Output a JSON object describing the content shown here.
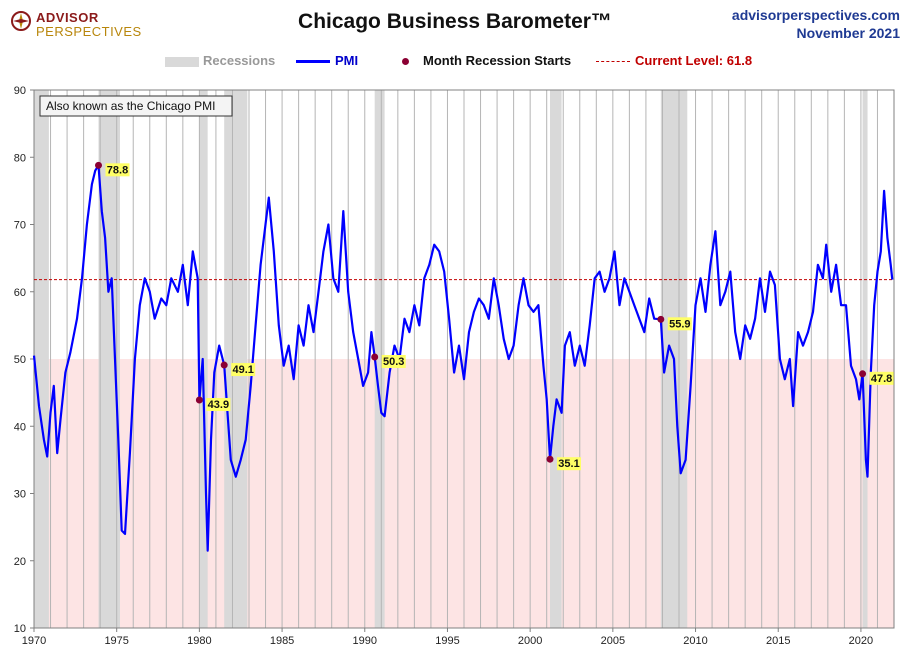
{
  "header": {
    "logo_line1": "ADVISOR",
    "logo_line2": "PERSPECTIVES",
    "title": "Chicago Business Barometer™",
    "site": "advisorperspectives.com",
    "date": "November 2021"
  },
  "legend": {
    "recessions": "Recessions",
    "pmi": "PMI",
    "recession_start": "Month Recession Starts",
    "current": "Current Level: 61.8"
  },
  "colors": {
    "pmi_line": "#0000ff",
    "recession_band": "#d9d9d9",
    "contraction_fill": "#fde4e4",
    "current_line": "#c00000",
    "marker": "#8b0033",
    "label_bg": "#ffff66"
  },
  "chart_data": {
    "type": "line",
    "title": "Chicago Business Barometer™",
    "annotation_box": "Also known as the Chicago PMI",
    "xlim": [
      1970,
      2022
    ],
    "ylim": [
      10,
      90
    ],
    "yticks": [
      10,
      20,
      30,
      40,
      50,
      60,
      70,
      80,
      90
    ],
    "xticks": [
      1970,
      1975,
      1980,
      1985,
      1990,
      1995,
      2000,
      2005,
      2010,
      2015,
      2020
    ],
    "grid": "vertical yearly lines",
    "contraction_threshold": 50,
    "current_level": 61.8,
    "recessions": [
      [
        1970.0,
        1970.9
      ],
      [
        1973.9,
        1975.2
      ],
      [
        1980.0,
        1980.5
      ],
      [
        1981.5,
        1982.9
      ],
      [
        1990.6,
        1991.2
      ],
      [
        2001.2,
        2001.9
      ],
      [
        2007.9,
        2009.5
      ],
      [
        2020.1,
        2020.4
      ]
    ],
    "recession_starts": [
      {
        "x": 1973.9,
        "y": 78.8,
        "label": "78.8"
      },
      {
        "x": 1980.0,
        "y": 43.9,
        "label": "43.9"
      },
      {
        "x": 1981.5,
        "y": 49.1,
        "label": "49.1"
      },
      {
        "x": 1990.6,
        "y": 50.3,
        "label": "50.3"
      },
      {
        "x": 2001.2,
        "y": 35.1,
        "label": "35.1"
      },
      {
        "x": 2007.9,
        "y": 55.9,
        "label": "55.9"
      },
      {
        "x": 2020.1,
        "y": 47.8,
        "label": "47.8"
      }
    ],
    "series": [
      {
        "name": "PMI",
        "points": [
          [
            1970.0,
            50.5
          ],
          [
            1970.3,
            43
          ],
          [
            1970.6,
            38
          ],
          [
            1970.8,
            35.5
          ],
          [
            1971.0,
            42
          ],
          [
            1971.2,
            46
          ],
          [
            1971.4,
            36
          ],
          [
            1971.6,
            41
          ],
          [
            1971.9,
            48
          ],
          [
            1972.2,
            51
          ],
          [
            1972.6,
            56
          ],
          [
            1972.9,
            62
          ],
          [
            1973.2,
            70
          ],
          [
            1973.5,
            76
          ],
          [
            1973.7,
            78
          ],
          [
            1973.9,
            78.8
          ],
          [
            1974.1,
            72
          ],
          [
            1974.3,
            68
          ],
          [
            1974.5,
            60
          ],
          [
            1974.7,
            62
          ],
          [
            1974.9,
            50
          ],
          [
            1975.1,
            38
          ],
          [
            1975.3,
            24.5
          ],
          [
            1975.5,
            24
          ],
          [
            1975.8,
            36
          ],
          [
            1976.1,
            50
          ],
          [
            1976.4,
            58
          ],
          [
            1976.7,
            62
          ],
          [
            1977.0,
            60
          ],
          [
            1977.3,
            56
          ],
          [
            1977.7,
            59
          ],
          [
            1978.0,
            58
          ],
          [
            1978.3,
            62
          ],
          [
            1978.7,
            60
          ],
          [
            1979.0,
            64
          ],
          [
            1979.3,
            58
          ],
          [
            1979.6,
            66
          ],
          [
            1979.9,
            62
          ],
          [
            1980.0,
            43.9
          ],
          [
            1980.2,
            50
          ],
          [
            1980.4,
            30
          ],
          [
            1980.5,
            21.5
          ],
          [
            1980.7,
            38
          ],
          [
            1980.9,
            48
          ],
          [
            1981.2,
            52
          ],
          [
            1981.5,
            49.1
          ],
          [
            1981.7,
            42
          ],
          [
            1981.9,
            35
          ],
          [
            1982.2,
            32.5
          ],
          [
            1982.5,
            35
          ],
          [
            1982.8,
            38
          ],
          [
            1983.1,
            46
          ],
          [
            1983.4,
            55
          ],
          [
            1983.7,
            64
          ],
          [
            1984.0,
            70
          ],
          [
            1984.2,
            74
          ],
          [
            1984.5,
            66
          ],
          [
            1984.8,
            55
          ],
          [
            1985.1,
            49
          ],
          [
            1985.4,
            52
          ],
          [
            1985.7,
            47
          ],
          [
            1986.0,
            55
          ],
          [
            1986.3,
            52
          ],
          [
            1986.6,
            58
          ],
          [
            1986.9,
            54
          ],
          [
            1987.2,
            60
          ],
          [
            1987.5,
            66
          ],
          [
            1987.8,
            70
          ],
          [
            1988.1,
            62
          ],
          [
            1988.4,
            60
          ],
          [
            1988.7,
            72
          ],
          [
            1989.0,
            60
          ],
          [
            1989.3,
            54
          ],
          [
            1989.6,
            50
          ],
          [
            1989.9,
            46
          ],
          [
            1990.2,
            48
          ],
          [
            1990.4,
            54
          ],
          [
            1990.6,
            50.3
          ],
          [
            1990.8,
            46
          ],
          [
            1991.0,
            42
          ],
          [
            1991.2,
            41.5
          ],
          [
            1991.5,
            48
          ],
          [
            1991.8,
            52
          ],
          [
            1992.1,
            50
          ],
          [
            1992.4,
            56
          ],
          [
            1992.7,
            54
          ],
          [
            1993.0,
            58
          ],
          [
            1993.3,
            55
          ],
          [
            1993.6,
            62
          ],
          [
            1993.9,
            64
          ],
          [
            1994.2,
            67
          ],
          [
            1994.5,
            66
          ],
          [
            1994.8,
            63
          ],
          [
            1995.1,
            56
          ],
          [
            1995.4,
            48
          ],
          [
            1995.7,
            52
          ],
          [
            1996.0,
            47
          ],
          [
            1996.3,
            54
          ],
          [
            1996.6,
            57
          ],
          [
            1996.9,
            59
          ],
          [
            1997.2,
            58
          ],
          [
            1997.5,
            56
          ],
          [
            1997.8,
            62
          ],
          [
            1998.1,
            58
          ],
          [
            1998.4,
            53
          ],
          [
            1998.7,
            50
          ],
          [
            1999.0,
            52
          ],
          [
            1999.3,
            58
          ],
          [
            1999.6,
            62
          ],
          [
            1999.9,
            58
          ],
          [
            2000.2,
            57
          ],
          [
            2000.5,
            58
          ],
          [
            2000.8,
            49
          ],
          [
            2001.0,
            44
          ],
          [
            2001.2,
            35.1
          ],
          [
            2001.4,
            40
          ],
          [
            2001.6,
            44
          ],
          [
            2001.9,
            42
          ],
          [
            2002.1,
            52
          ],
          [
            2002.4,
            54
          ],
          [
            2002.7,
            49
          ],
          [
            2003.0,
            52
          ],
          [
            2003.3,
            49
          ],
          [
            2003.6,
            55
          ],
          [
            2003.9,
            62
          ],
          [
            2004.2,
            63
          ],
          [
            2004.5,
            60
          ],
          [
            2004.8,
            62
          ],
          [
            2005.1,
            66
          ],
          [
            2005.4,
            58
          ],
          [
            2005.7,
            62
          ],
          [
            2006.0,
            60
          ],
          [
            2006.3,
            58
          ],
          [
            2006.6,
            56
          ],
          [
            2006.9,
            54
          ],
          [
            2007.2,
            59
          ],
          [
            2007.5,
            56
          ],
          [
            2007.9,
            55.9
          ],
          [
            2008.1,
            48
          ],
          [
            2008.4,
            52
          ],
          [
            2008.7,
            50
          ],
          [
            2008.9,
            40
          ],
          [
            2009.1,
            33
          ],
          [
            2009.4,
            35
          ],
          [
            2009.7,
            46
          ],
          [
            2010.0,
            58
          ],
          [
            2010.3,
            62
          ],
          [
            2010.6,
            57
          ],
          [
            2010.9,
            64
          ],
          [
            2011.2,
            69
          ],
          [
            2011.5,
            58
          ],
          [
            2011.8,
            60
          ],
          [
            2012.1,
            63
          ],
          [
            2012.4,
            54
          ],
          [
            2012.7,
            50
          ],
          [
            2013.0,
            55
          ],
          [
            2013.3,
            53
          ],
          [
            2013.6,
            56
          ],
          [
            2013.9,
            62
          ],
          [
            2014.2,
            57
          ],
          [
            2014.5,
            63
          ],
          [
            2014.8,
            61
          ],
          [
            2015.1,
            50
          ],
          [
            2015.4,
            47
          ],
          [
            2015.7,
            50
          ],
          [
            2015.9,
            43
          ],
          [
            2016.2,
            54
          ],
          [
            2016.5,
            52
          ],
          [
            2016.8,
            54
          ],
          [
            2017.1,
            57
          ],
          [
            2017.4,
            64
          ],
          [
            2017.7,
            62
          ],
          [
            2017.9,
            67
          ],
          [
            2018.2,
            60
          ],
          [
            2018.5,
            64
          ],
          [
            2018.8,
            58
          ],
          [
            2019.1,
            58
          ],
          [
            2019.4,
            49
          ],
          [
            2019.7,
            47
          ],
          [
            2019.9,
            44
          ],
          [
            2020.1,
            47.8
          ],
          [
            2020.3,
            35
          ],
          [
            2020.4,
            32.5
          ],
          [
            2020.6,
            48
          ],
          [
            2020.8,
            58
          ],
          [
            2021.0,
            63
          ],
          [
            2021.2,
            66
          ],
          [
            2021.4,
            75
          ],
          [
            2021.6,
            68
          ],
          [
            2021.8,
            64
          ],
          [
            2021.9,
            61.8
          ]
        ]
      }
    ]
  }
}
